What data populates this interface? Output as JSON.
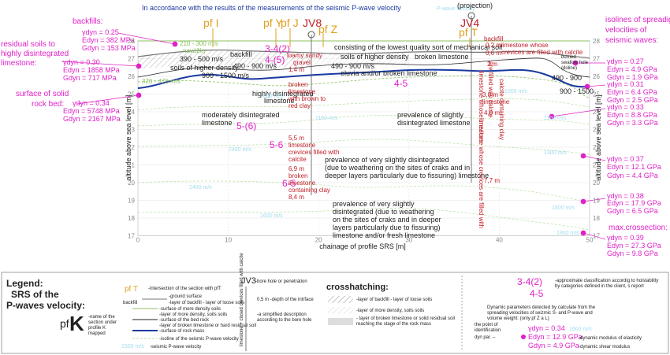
{
  "header": {
    "title": "In accordance with the results of the measurements of the seismic P-wave velocity",
    "title_tail": "P-wave velocity"
  },
  "top_labels": {
    "0": "pf I",
    "1": "pf Y",
    "2": "pf J",
    "3": "JV8",
    "4": "pf Z",
    "5": "JV4",
    "6": "pf T",
    "7": "backfill",
    "projection": "(projection)"
  },
  "left_params": [
    {
      "title": [
        "backfills:"
      ],
      "lines": [
        "γdyn = 0.25",
        "Edyn = 382 MPa",
        "Gdyn = 153 MPa"
      ]
    },
    {
      "title": [
        "residual soils to",
        "highly disintegrated",
        "limestone:"
      ],
      "lines": [
        "γdyn = 0.30",
        "Edyn = 1858 MPa",
        "Gdyn = 717 MPa"
      ]
    },
    {
      "title": [
        "surface of solid",
        "rock bed:"
      ],
      "lines": [
        "γdyn = 0.34",
        "Edyn = 5748 MPa",
        "Gdyn = 2167 MPa"
      ]
    }
  ],
  "right_params": {
    "title": [
      "isolines of spreadig",
      "velocities of",
      "seismic waves:"
    ],
    "max_title": "max.crossection:",
    "groups": [
      [
        "γdyn = 0.27",
        "Edyn = 4.9 GPa",
        "Gdyn = 1.9 GPa"
      ],
      [
        "γdyn = 0.31",
        "Edyn = 6.4 GPa",
        "Gdyn = 2.5 GPa"
      ],
      [
        "γdyn = 0.33",
        "Edyn = 8.8 GPa",
        "Gdyn = 3.3 GPa"
      ],
      [
        "γdyn = 0.37",
        "Edyn = 12.1 GPa",
        "Gdyn = 4.4 GPa"
      ],
      [
        "γdyn = 0.38",
        "Edyn = 17.9 GPa",
        "Gdyn = 6.5 GPa"
      ],
      [
        "γdyn = 0.39",
        "Edyn = 27.3 GPa",
        "Gdyn = 9.8 GPa"
      ]
    ]
  },
  "axes": {
    "y_label": "altitude above sea level [m]",
    "x_label": "chainage of profile SRS [m]",
    "yticks": [
      17,
      18,
      19,
      20,
      21,
      22,
      23,
      24,
      25,
      26,
      27,
      28
    ],
    "xticks": [
      0,
      10,
      20,
      30,
      40,
      50
    ]
  },
  "plot_labels": [
    "210 - 300 m/s",
    "navážky",
    "390 - 500 m/s",
    "backfill",
    "soils of higher density",
    "320 - 470 m/s",
    "900 - 1500 m/s",
    "490 - 900 m/s",
    "highly disintegrated",
    "limestone",
    "moderately disintegrated",
    "limestone",
    "5-(6)",
    "3-4(2)",
    "4-(5)",
    "consisting of the lowest quality sort of mechanical soil",
    "soils of higher density",
    "490 - 900 m/s",
    "eluvia and/or broken limestone",
    "broken limestone",
    "4-5",
    "prevalence of slightly",
    "disintegrated limestone",
    "5-6",
    "6-5",
    "prevalence of  very slightly disintegrated",
    "(due to weathering on the sites of craks and in",
    "deeper layers particularly due to fissuring) limestone",
    "prevalence of  very slightly",
    "disintegrated (due to weathering",
    "on the sites of craks and in deeper",
    "layers particularly due to fissuring)",
    "limestone and/or fresh  limestone",
    "490 - 900",
    "900 - 1500",
    "burried",
    "swallow hole",
    "(doline)"
  ],
  "borehole_JV8": [
    "loamy sandy",
    "gravel",
    "1,4 m",
    "broken",
    "limestone",
    "with brown to",
    "red clay",
    "5,5 m",
    "limestone",
    "crevices filled with",
    "calcite",
    "6,9 m",
    "broken",
    "limestone",
    "containing clay",
    "8,4 m"
  ],
  "borehole_JV4": [
    "0,2 m",
    "0,6 m",
    "2 m",
    "3,0 m",
    "limestone",
    "4,0 m",
    "7,7 m",
    "limestone whose",
    "crevices are filled with calcite",
    "limestone whose crevices",
    "are filled with calcite",
    "limestone whose crevices are filled with",
    "calcite containing clay"
  ],
  "isoline_labels": [
    "1000 m/s",
    "1160 m/s",
    "1300 m/s",
    "1500 m/s",
    "1600 m/s",
    "1900 m/s",
    "2400 m/s"
  ],
  "legend": {
    "title": "Legend:",
    "sub1": "SRS of the",
    "sub2": "P-waves velocity:",
    "pf": "pf",
    "K": "K",
    "k_desc": [
      "-name of the",
      "section under",
      "profile K",
      "mapped"
    ],
    "pfT": "pf T",
    "backfill": "backfill",
    "jv3": "JV3",
    "crosshatching": "crosshatching:",
    "velocity_sample": "1500 m/s",
    "velocity_sample2": "1600 m/s",
    "class_sample": [
      "3-4(2)",
      "4-5"
    ],
    "params": [
      "γdyn = 0.34",
      "Edyn = 12.9 GPa",
      "Gdyn = 4.9 GPa"
    ],
    "items": [
      "-intersection of the section with pfT",
      "-ground surface",
      "-layer of backfill - layer of loose soils",
      "-surface of more density soils",
      "-layer of more density, soils soils",
      "-surface of the bed rock",
      "-layer of broken limestone or hard residual soil",
      "-surface of rock mass",
      "-isoline of the seismic P-wave velocity",
      "-seismic P-wave velocity",
      "-bore hole or penetration",
      "0,5 m -depth of the intrface",
      "-a simplified description",
      "according to the bore hole",
      "limestone + closed crevices filled with calcite",
      "-layer of backfill - layer of loose soils",
      "-layer of more density, soils soils",
      "- layer of broken limestone or solid residual soil",
      "reaching the stage of the rock mass",
      "-approximate classification accordig to hoistability",
      "by categories defined in the client, s report",
      "Dynamic parameters detected by calculate from the",
      "spreading velocities of seizmic S- and P-wave and",
      "volume weight:     (only pf Z a L)",
      "the point of",
      "identification",
      "dyn par. –",
      "-dynamic modulus of elasticity",
      "-dynamic shear modulus"
    ]
  }
}
